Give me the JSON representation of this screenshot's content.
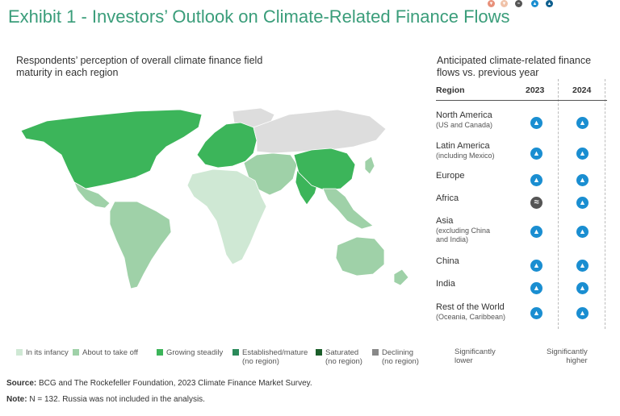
{
  "title": "Exhibit 1 - Investors’ Outlook on Climate-Related Finance Flows",
  "map": {
    "subtitle": "Respondents’ perception of overall climate finance field maturity in each region",
    "regions": [
      {
        "name": "North America",
        "level": "Growing steadily"
      },
      {
        "name": "Latin America",
        "level": "About to take off"
      },
      {
        "name": "Europe",
        "level": "Growing steadily"
      },
      {
        "name": "Africa",
        "level": "In its infancy"
      },
      {
        "name": "Asia",
        "level": "About to take off"
      },
      {
        "name": "China",
        "level": "Growing steadily"
      },
      {
        "name": "India",
        "level": "Growing steadily"
      },
      {
        "name": "Rest of the World",
        "level": "About to take off"
      }
    ],
    "legend": [
      {
        "label": "In its infancy",
        "sub": "",
        "color": "#cfe8d4"
      },
      {
        "label": "About to take off",
        "sub": "",
        "color": "#9fd1a8"
      },
      {
        "label": "Growing steadily",
        "sub": "",
        "color": "#3cb55a"
      },
      {
        "label": "Established/mature",
        "sub": "(no region)",
        "color": "#2a8a5a"
      },
      {
        "label": "Saturated",
        "sub": "(no region)",
        "color": "#1b5e2a"
      },
      {
        "label": "Declining",
        "sub": "(no region)",
        "color": "#888888"
      }
    ],
    "no_data_color": "#dddddd"
  },
  "table": {
    "subtitle": "Anticipated climate-related finance flows vs. previous year",
    "col_region": "Region",
    "col_2023": "2023",
    "col_2024": "2024",
    "rows": [
      {
        "name": "North America",
        "sub": [
          "(US and Canada)"
        ],
        "v2023": "up",
        "v2024": "up"
      },
      {
        "name": "Latin America",
        "sub": [
          "(including Mexico)"
        ],
        "v2023": "up",
        "v2024": "up"
      },
      {
        "name": "Europe",
        "sub": [],
        "v2023": "up",
        "v2024": "up"
      },
      {
        "name": "Africa",
        "sub": [],
        "v2023": "equal",
        "v2024": "up"
      },
      {
        "name": "Asia",
        "sub": [
          "(excluding China",
          "and India)"
        ],
        "v2023": "up",
        "v2024": "up"
      },
      {
        "name": "China",
        "sub": [],
        "v2023": "up",
        "v2024": "up"
      },
      {
        "name": "India",
        "sub": [],
        "v2023": "up",
        "v2024": "up"
      },
      {
        "name": "Rest of the World",
        "sub": [
          "(Oceania, Caribbean)"
        ],
        "v2023": "up",
        "v2024": "up"
      }
    ],
    "scale": {
      "low_label": [
        "Significantly",
        "lower"
      ],
      "high_label": [
        "Significantly",
        "higher"
      ],
      "colors": [
        "#e8907a",
        "#f0c2a8",
        "#555555",
        "#1a8ed1",
        "#0e5f8e"
      ]
    }
  },
  "footer": {
    "source_label": "Source:",
    "source_text": " BCG and The Rockefeller Foundation, 2023 Climate Finance Market Survey.",
    "note_label": "Note:",
    "note_text": " N = 132. Russia was not included in the analysis."
  },
  "chart_data": [
    {
      "type": "map",
      "title": "Respondents’ perception of overall climate finance field maturity in each region",
      "categories": [
        "In its infancy",
        "About to take off",
        "Growing steadily",
        "Established/mature",
        "Saturated",
        "Declining"
      ],
      "regions": {
        "North America": "Growing steadily",
        "Latin America": "About to take off",
        "Europe": "Growing steadily",
        "Africa": "In its infancy",
        "Asia": "About to take off",
        "China": "Growing steadily",
        "India": "Growing steadily",
        "Rest of the World": "About to take off"
      }
    },
    {
      "type": "table",
      "title": "Anticipated climate-related finance flows vs. previous year",
      "columns": [
        "Region",
        "2023",
        "2024"
      ],
      "rows": [
        [
          "North America",
          "higher",
          "higher"
        ],
        [
          "Latin America",
          "higher",
          "higher"
        ],
        [
          "Europe",
          "higher",
          "higher"
        ],
        [
          "Africa",
          "same",
          "higher"
        ],
        [
          "Asia",
          "higher",
          "higher"
        ],
        [
          "China",
          "higher",
          "higher"
        ],
        [
          "India",
          "higher",
          "higher"
        ],
        [
          "Rest of the World",
          "higher",
          "higher"
        ]
      ]
    }
  ]
}
